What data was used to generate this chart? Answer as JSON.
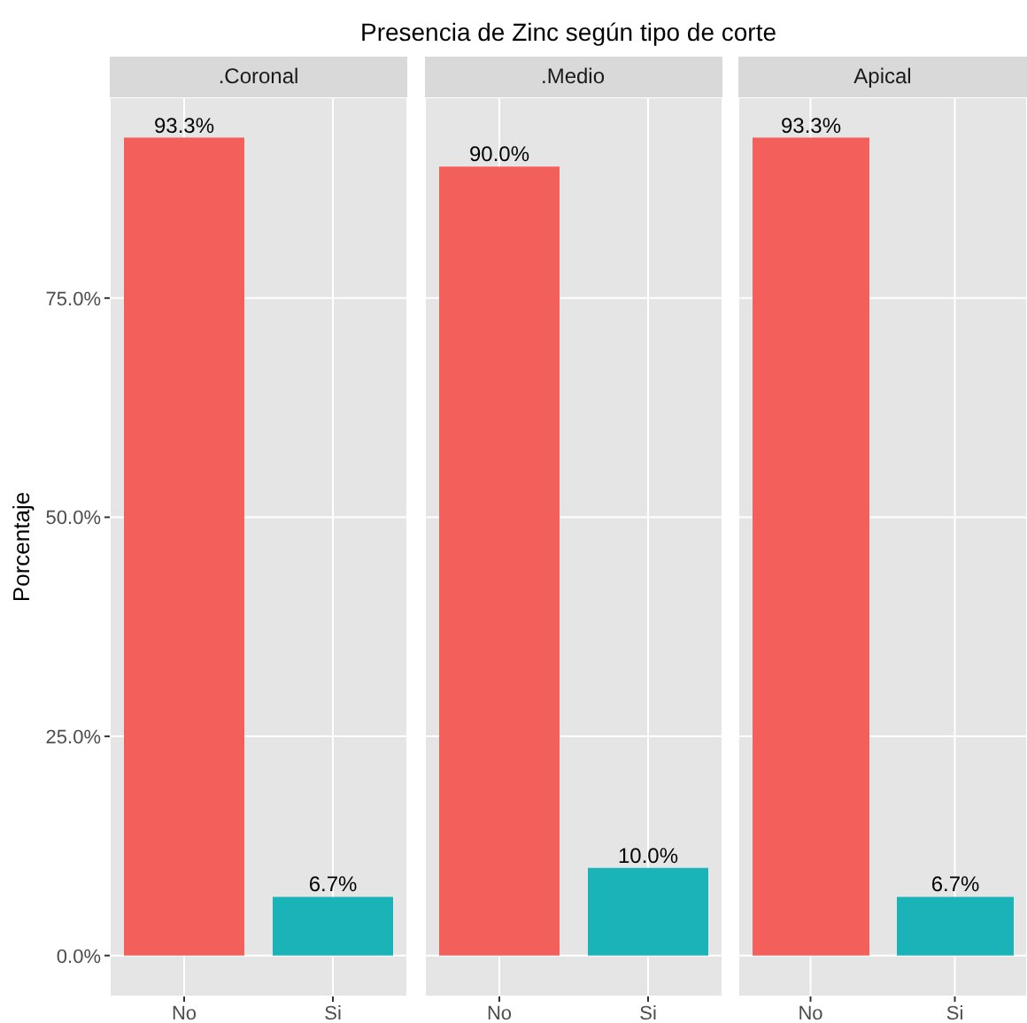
{
  "chart_data": [
    {
      "type": "bar",
      "title": ".Coronal",
      "annotations": [
        "Presencia de Zinc según tipo de corte"
      ],
      "ylabel": "Porcentaje",
      "categories": [
        "No",
        "Si"
      ],
      "values": [
        93.3,
        6.7
      ],
      "colors": [
        "#f35f5b",
        "#1ab3b8"
      ],
      "value_labels": [
        "93.3%",
        "6.7%"
      ],
      "ylim": [
        -4.67,
        97.9
      ],
      "yticks": [
        {
          "value": 0,
          "label": "0.0%"
        },
        {
          "value": 25,
          "label": "25.0%"
        },
        {
          "value": 50,
          "label": "50.0%"
        },
        {
          "value": 75,
          "label": "75.0%"
        }
      ],
      "grid": true
    },
    {
      "type": "bar",
      "title": ".Medio",
      "categories": [
        "No",
        "Si"
      ],
      "values": [
        90.0,
        10.0
      ],
      "colors": [
        "#f35f5b",
        "#1ab3b8"
      ],
      "value_labels": [
        "90.0%",
        "10.0%"
      ],
      "ylim": [
        -4.67,
        97.9
      ],
      "yticks": [
        {
          "value": 0,
          "label": null
        },
        {
          "value": 25,
          "label": null
        },
        {
          "value": 50,
          "label": null
        },
        {
          "value": 75,
          "label": null
        }
      ],
      "grid": true,
      "tick_labels": "x"
    },
    {
      "type": "bar",
      "title": "Apical",
      "categories": [
        "No",
        "Si"
      ],
      "values": [
        93.3,
        6.7
      ],
      "colors": [
        "#f35f5b",
        "#1ab3b8"
      ],
      "value_labels": [
        "93.3%",
        "6.7%"
      ],
      "ylim": [
        -4.67,
        97.9
      ],
      "yticks": [
        {
          "value": 0,
          "label": null
        },
        {
          "value": 25,
          "label": null
        },
        {
          "value": 50,
          "label": null
        },
        {
          "value": 75,
          "label": null
        }
      ],
      "grid": true,
      "tick_labels": "x"
    }
  ]
}
